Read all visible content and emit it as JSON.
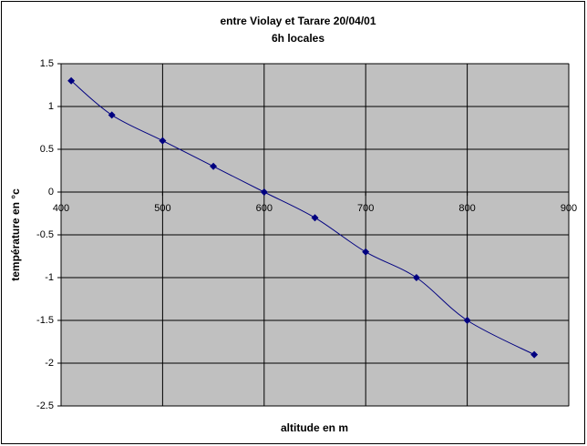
{
  "chart_data": {
    "type": "scatter",
    "title": "entre Violay et Tarare 20/04/01",
    "subtitle": "6h locales",
    "x_label": "altitude en m",
    "y_label": "température en °c",
    "series": [
      {
        "color": "#000080",
        "x": [
          410,
          450,
          500,
          550,
          600,
          650,
          700,
          750,
          800,
          866
        ],
        "values": [
          1.3,
          0.9,
          0.6,
          0.3,
          0,
          -0.3,
          -0.7,
          -1,
          -1.5,
          -1.9
        ]
      }
    ],
    "xlim": [
      400,
      900
    ],
    "xticks": [
      400,
      500,
      600,
      700,
      800,
      900
    ],
    "ylim": [
      -2.5,
      1.5
    ],
    "yticks": [
      1.5,
      1,
      0.5,
      0,
      -0.5,
      -1,
      -1.5,
      -2,
      -2.5
    ],
    "grid": true,
    "smooth": true
  }
}
